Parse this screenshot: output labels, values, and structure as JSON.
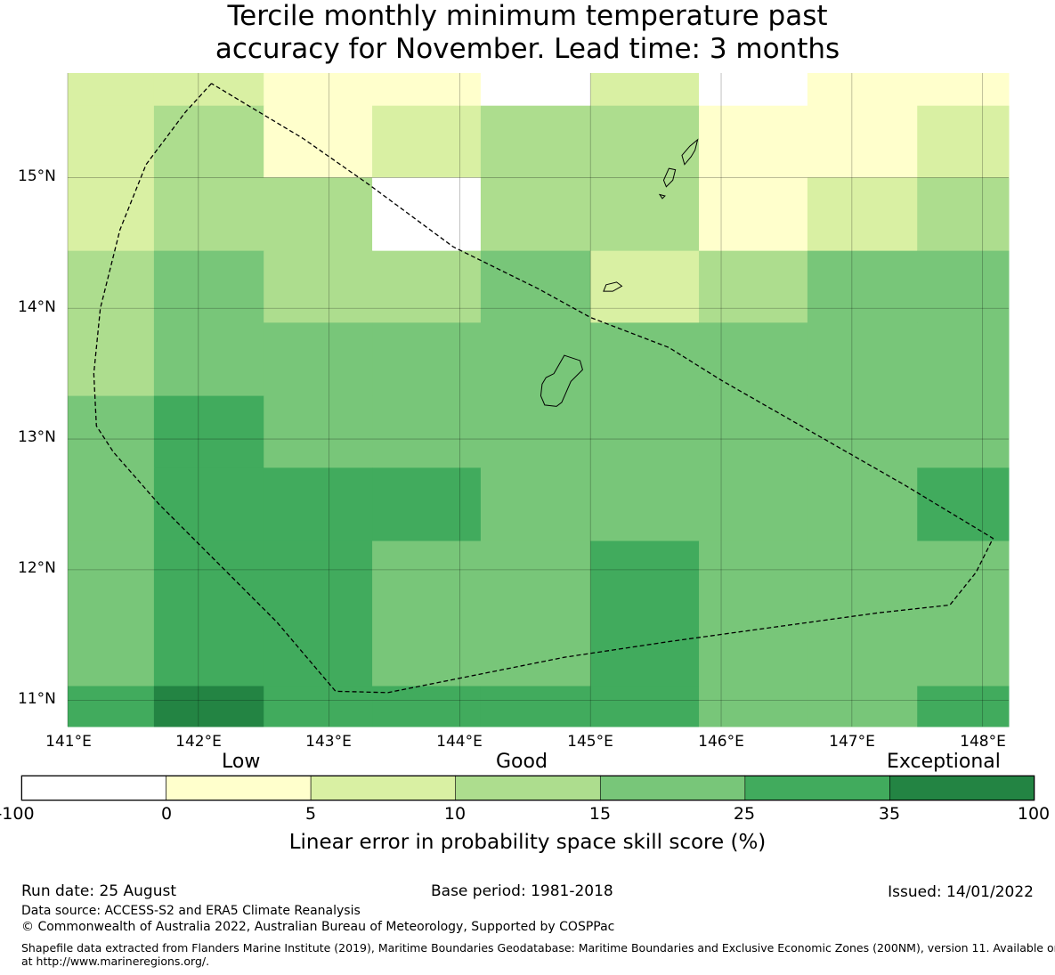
{
  "title": {
    "line1": "Tercile monthly minimum temperature past",
    "line2": "accuracy for November. Lead time: 3 months"
  },
  "map": {
    "lon_range": [
      141.0,
      148.2
    ],
    "lat_range": [
      10.8,
      15.8
    ],
    "lat_ticks": [
      {
        "value": 15,
        "label": "15°N"
      },
      {
        "value": 14,
        "label": "14°N"
      },
      {
        "value": 13,
        "label": "13°N"
      },
      {
        "value": 12,
        "label": "12°N"
      },
      {
        "value": 11,
        "label": "11°N"
      }
    ],
    "lon_ticks": [
      {
        "value": 141,
        "label": "141°E"
      },
      {
        "value": 142,
        "label": "142°E"
      },
      {
        "value": 143,
        "label": "143°E"
      },
      {
        "value": 144,
        "label": "144°E"
      },
      {
        "value": 145,
        "label": "145°E"
      },
      {
        "value": 146,
        "label": "146°E"
      },
      {
        "value": 147,
        "label": "147°E"
      },
      {
        "value": 148,
        "label": "148°E"
      }
    ],
    "grid_lon_edges": [
      141.0,
      141.66,
      142.5,
      143.33,
      144.16,
      145.0,
      145.83,
      146.66,
      147.5,
      148.2
    ],
    "grid_lat_edges": [
      15.8,
      15.55,
      15.0,
      14.44,
      13.89,
      13.33,
      12.78,
      12.22,
      11.11,
      10.8
    ],
    "skill_bins": [
      [
        2,
        2,
        1,
        1,
        0,
        2,
        0,
        1,
        1
      ],
      [
        2,
        3,
        1,
        2,
        3,
        3,
        1,
        1,
        2
      ],
      [
        2,
        3,
        3,
        0,
        3,
        3,
        1,
        2,
        3
      ],
      [
        3,
        4,
        3,
        3,
        4,
        2,
        3,
        4,
        4
      ],
      [
        3,
        4,
        4,
        4,
        4,
        4,
        4,
        4,
        4
      ],
      [
        4,
        5,
        4,
        4,
        4,
        4,
        4,
        4,
        4
      ],
      [
        4,
        5,
        5,
        5,
        4,
        4,
        4,
        4,
        5
      ],
      [
        4,
        5,
        5,
        4,
        4,
        5,
        4,
        4,
        4
      ],
      [
        5,
        6,
        5,
        5,
        5,
        5,
        4,
        4,
        5
      ]
    ],
    "eez_boundary": [
      [
        142.1,
        15.72
      ],
      [
        141.9,
        15.5
      ],
      [
        141.6,
        15.1
      ],
      [
        141.4,
        14.6
      ],
      [
        141.25,
        14.0
      ],
      [
        141.2,
        13.5
      ],
      [
        141.22,
        13.1
      ],
      [
        141.35,
        12.9
      ],
      [
        141.7,
        12.5
      ],
      [
        142.2,
        12.0
      ],
      [
        142.6,
        11.6
      ],
      [
        143.05,
        11.07
      ],
      [
        143.45,
        11.06
      ],
      [
        144.0,
        11.17
      ],
      [
        144.8,
        11.33
      ],
      [
        145.6,
        11.45
      ],
      [
        146.4,
        11.56
      ],
      [
        147.2,
        11.67
      ],
      [
        147.75,
        11.73
      ],
      [
        147.95,
        11.98
      ],
      [
        148.08,
        12.24
      ],
      [
        147.4,
        12.65
      ],
      [
        146.7,
        13.05
      ],
      [
        146.0,
        13.45
      ],
      [
        145.6,
        13.7
      ],
      [
        145.0,
        13.93
      ],
      [
        144.6,
        14.15
      ],
      [
        143.95,
        14.47
      ],
      [
        143.3,
        14.95
      ],
      [
        142.8,
        15.3
      ],
      [
        142.1,
        15.72
      ]
    ],
    "islands": [
      {
        "name": "Guam",
        "coords": [
          [
            144.8,
            13.64
          ],
          [
            144.92,
            13.6
          ],
          [
            144.94,
            13.53
          ],
          [
            144.85,
            13.44
          ],
          [
            144.78,
            13.28
          ],
          [
            144.74,
            13.25
          ],
          [
            144.65,
            13.26
          ],
          [
            144.62,
            13.33
          ],
          [
            144.63,
            13.42
          ],
          [
            144.66,
            13.47
          ],
          [
            144.72,
            13.5
          ],
          [
            144.8,
            13.64
          ]
        ]
      },
      {
        "name": "Rota",
        "coords": [
          [
            145.12,
            14.18
          ],
          [
            145.2,
            14.2
          ],
          [
            145.24,
            14.17
          ],
          [
            145.17,
            14.13
          ],
          [
            145.1,
            14.13
          ],
          [
            145.12,
            14.18
          ]
        ]
      },
      {
        "name": "Tinian",
        "coords": [
          [
            145.6,
            15.07
          ],
          [
            145.65,
            15.06
          ],
          [
            145.63,
            14.98
          ],
          [
            145.58,
            14.93
          ],
          [
            145.56,
            14.98
          ],
          [
            145.6,
            15.07
          ]
        ]
      },
      {
        "name": "Aguijan",
        "coords": [
          [
            145.53,
            14.87
          ],
          [
            145.57,
            14.86
          ],
          [
            145.55,
            14.84
          ],
          [
            145.53,
            14.87
          ]
        ]
      },
      {
        "name": "Saipan",
        "coords": [
          [
            145.7,
            15.17
          ],
          [
            145.76,
            15.24
          ],
          [
            145.82,
            15.29
          ],
          [
            145.8,
            15.21
          ],
          [
            145.77,
            15.16
          ],
          [
            145.72,
            15.1
          ],
          [
            145.7,
            15.17
          ]
        ]
      }
    ]
  },
  "colorbar": {
    "colors": [
      "#ffffff",
      "#ffffcc",
      "#d9f0a3",
      "#addd8e",
      "#78c679",
      "#41ab5d",
      "#238443"
    ],
    "ticks": [
      "-100",
      "0",
      "5",
      "10",
      "15",
      "25",
      "35",
      "100"
    ],
    "category_labels": {
      "low": "Low",
      "good": "Good",
      "exceptional": "Exceptional"
    },
    "axis_label": "Linear error in probability space skill score (%)"
  },
  "footer": {
    "run_date": "Run date: 25 August",
    "base_period": "Base period: 1981-2018",
    "issued": "Issued: 14/01/2022",
    "data_source": "Data source: ACCESS-S2 and ERA5 Climate Reanalysis",
    "copyright": "© Commonwealth of Australia 2022, Australian Bureau of Meteorology, Supported by COSPPac",
    "shapefile_line1": "Shapefile data extracted from Flanders Marine Institute (2019), Maritime Boundaries Geodatabase: Maritime Boundaries and Exclusive Economic Zones (200NM), version 11. Available online",
    "shapefile_line2": "at http://www.marineregions.org/."
  }
}
